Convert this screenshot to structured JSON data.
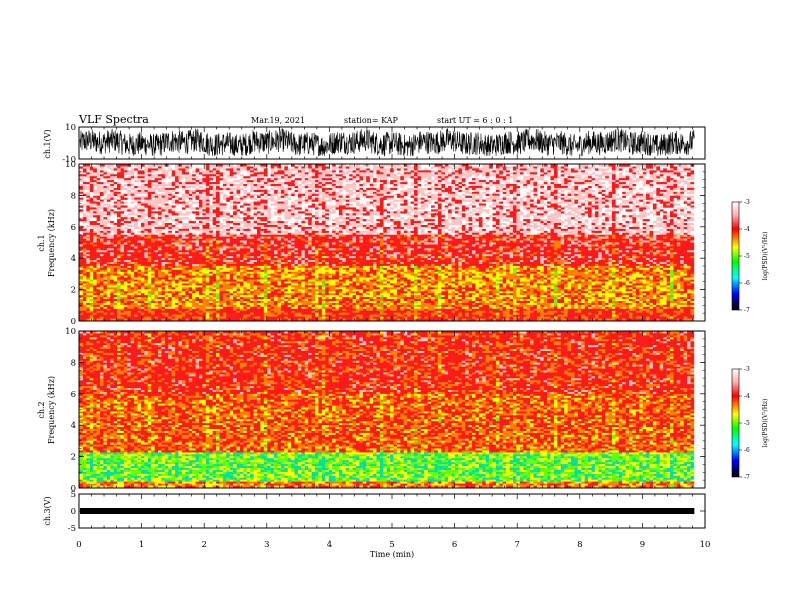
{
  "header": {
    "title": "VLF Spectra",
    "date": "Mar.19, 2021",
    "station": "station= KAP",
    "start_ut": "start  UT =   6 : 0  : 1"
  },
  "chart_data": [
    {
      "type": "line",
      "panel": "ch1-waveform",
      "ylabel": "ch.1(V)",
      "ylim": [
        -10,
        10
      ],
      "yticks": [
        "10",
        "-10"
      ],
      "xlim": [
        0,
        10
      ],
      "color": "#000000"
    },
    {
      "type": "heatmap",
      "panel": "ch1-spectrogram",
      "ylabel": "ch.1\nFrequency  (kHz)",
      "ylim": [
        0,
        10
      ],
      "yticks": [
        "0",
        "2",
        "4",
        "6",
        "8",
        "10"
      ],
      "xlim": [
        0,
        10
      ],
      "colorbar": {
        "label": "log(PSD)(V²/Hz)",
        "range": [
          -7,
          -3
        ],
        "ticks": [
          "-3",
          "-4",
          "-5",
          "-6",
          "-7"
        ],
        "colors": [
          "#ffffff",
          "#ff0000",
          "#ffff00",
          "#00ff00",
          "#00ffff",
          "#0000ff",
          "#000000"
        ]
      }
    },
    {
      "type": "heatmap",
      "panel": "ch2-spectrogram",
      "ylabel": "ch.2\nFrequency  (kHz)",
      "ylim": [
        0,
        10
      ],
      "yticks": [
        "0",
        "2",
        "4",
        "6",
        "8",
        "10"
      ],
      "xlim": [
        0,
        10
      ],
      "colorbar": {
        "label": "log(PSD)(V²/Hz)",
        "range": [
          -7,
          -3
        ],
        "ticks": [
          "-3",
          "-4",
          "-5",
          "-6",
          "-7"
        ],
        "colors": [
          "#ffffff",
          "#ff0000",
          "#ffff00",
          "#00ff00",
          "#00ffff",
          "#0000ff",
          "#000000"
        ]
      }
    },
    {
      "type": "line",
      "panel": "ch3-waveform",
      "ylabel": "ch.3(V)",
      "ylim": [
        -5,
        5
      ],
      "yticks": [
        "5",
        "0",
        "-5"
      ],
      "xlim": [
        0,
        10
      ],
      "color": "#000000"
    }
  ],
  "xaxis": {
    "label": "Time  (min)",
    "ticks": [
      "0",
      "1",
      "2",
      "3",
      "4",
      "5",
      "6",
      "7",
      "8",
      "9",
      "10"
    ],
    "data_end": 9.83
  }
}
